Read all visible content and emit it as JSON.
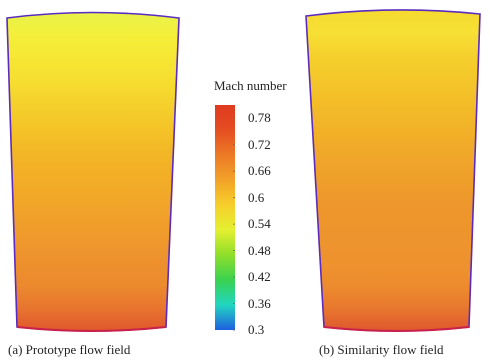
{
  "panels": [
    {
      "caption": "(a) Prototype flow field",
      "colors": [
        "#e8f34a",
        "#f4ef3a",
        "#f6e734",
        "#f6de30",
        "#f5d12c",
        "#f4c528",
        "#f3b826",
        "#f3b026",
        "#f2a828",
        "#f0a12a",
        "#ef982c",
        "#ee902e",
        "#ec8a2e",
        "#e8752e",
        "#e0572e"
      ]
    },
    {
      "caption": "(b) Similarity flow field",
      "colors": [
        "#f6da30",
        "#f7e034",
        "#f5d02c",
        "#f4c72a",
        "#f3bd28",
        "#f2b428",
        "#f1aa29",
        "#efa22a",
        "#ee9a2b",
        "#ee952c",
        "#ee942e",
        "#ee922e",
        "#ed8c2e",
        "#e8782e",
        "#df562e"
      ]
    }
  ],
  "colorbar": {
    "title": "Mach number",
    "ticks": [
      "0.78",
      "0.72",
      "0.66",
      "0.6",
      "0.54",
      "0.48",
      "0.42",
      "0.36",
      "0.3"
    ],
    "tick_values": [
      0.78,
      0.72,
      0.66,
      0.6,
      0.54,
      0.48,
      0.42,
      0.36,
      0.3
    ],
    "range": [
      0.3,
      0.81
    ],
    "gradient": [
      "#1e5fe0",
      "#21d6c0",
      "#3ad250",
      "#8ede2a",
      "#e4f030",
      "#f6cf2a",
      "#f2a228",
      "#ec7a26",
      "#e54e22",
      "#df3a20"
    ]
  },
  "colors": {
    "outline": "#5a2bbf",
    "bottom_edge": "#c8204a"
  }
}
